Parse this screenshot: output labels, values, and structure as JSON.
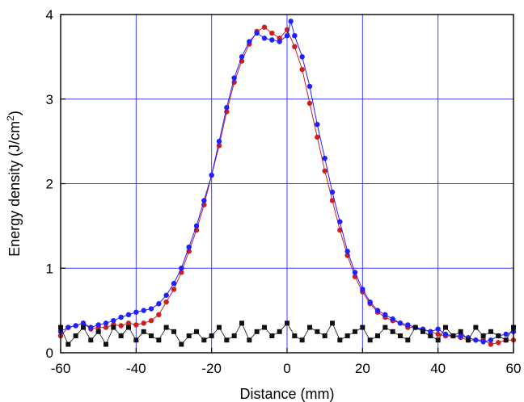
{
  "chart_data": {
    "type": "scatter",
    "xlabel": "Distance (mm)",
    "ylabel": "Energy density (J/cm²)",
    "xlim": [
      -60,
      60
    ],
    "ylim": [
      0,
      4
    ],
    "xticks": [
      "-60",
      "-40",
      "-20",
      "0",
      "20",
      "40",
      "60"
    ],
    "yticks": [
      "0",
      "1",
      "2",
      "3",
      "4"
    ],
    "grid": true,
    "colors": {
      "series_1": "#cc1f1f",
      "series_2": "#1f1fff",
      "series_3": "#111111",
      "grid": "#3b3bff"
    },
    "series": [
      {
        "marker": "circle",
        "color": "#cc1f1f",
        "x": [
          -60,
          -58,
          -56,
          -54,
          -52,
          -50,
          -48,
          -46,
          -44,
          -42,
          -40,
          -38,
          -36,
          -34,
          -32,
          -30,
          -28,
          -26,
          -24,
          -22,
          -20,
          -18,
          -16,
          -14,
          -12,
          -10,
          -8,
          -6,
          -4,
          -2,
          0,
          2,
          4,
          6,
          8,
          10,
          12,
          14,
          16,
          18,
          20,
          22,
          24,
          26,
          28,
          30,
          32,
          34,
          36,
          38,
          40,
          42,
          44,
          46,
          48,
          50,
          52,
          54,
          56,
          58,
          60
        ],
        "y": [
          0.2,
          0.3,
          0.32,
          0.35,
          0.28,
          0.3,
          0.3,
          0.33,
          0.32,
          0.35,
          0.33,
          0.35,
          0.38,
          0.45,
          0.6,
          0.75,
          0.95,
          1.2,
          1.45,
          1.75,
          2.1,
          2.45,
          2.85,
          3.2,
          3.45,
          3.65,
          3.8,
          3.85,
          3.78,
          3.72,
          3.82,
          3.62,
          3.35,
          2.95,
          2.55,
          2.15,
          1.8,
          1.45,
          1.15,
          0.9,
          0.72,
          0.58,
          0.48,
          0.42,
          0.38,
          0.35,
          0.3,
          0.3,
          0.27,
          0.25,
          0.22,
          0.2,
          0.2,
          0.18,
          0.15,
          0.15,
          0.15,
          0.1,
          0.12,
          0.15,
          0.15
        ]
      },
      {
        "marker": "circle",
        "color": "#1f1fff",
        "x": [
          -60,
          -58,
          -56,
          -54,
          -52,
          -50,
          -48,
          -46,
          -44,
          -42,
          -40,
          -38,
          -36,
          -34,
          -32,
          -30,
          -28,
          -26,
          -24,
          -22,
          -20,
          -18,
          -16,
          -14,
          -12,
          -10,
          -8,
          -6,
          -4,
          -2,
          0,
          1,
          2,
          4,
          6,
          8,
          10,
          12,
          14,
          16,
          18,
          20,
          22,
          24,
          26,
          28,
          30,
          32,
          34,
          36,
          38,
          40,
          42,
          44,
          46,
          48,
          50,
          52,
          54,
          56,
          58,
          60
        ],
        "y": [
          0.25,
          0.3,
          0.32,
          0.35,
          0.3,
          0.33,
          0.35,
          0.38,
          0.42,
          0.45,
          0.48,
          0.5,
          0.52,
          0.58,
          0.68,
          0.82,
          1.0,
          1.25,
          1.5,
          1.8,
          2.1,
          2.5,
          2.9,
          3.25,
          3.5,
          3.68,
          3.78,
          3.72,
          3.7,
          3.68,
          3.75,
          3.92,
          3.75,
          3.5,
          3.15,
          2.7,
          2.3,
          1.9,
          1.55,
          1.2,
          0.95,
          0.75,
          0.6,
          0.5,
          0.45,
          0.4,
          0.35,
          0.33,
          0.3,
          0.28,
          0.25,
          0.28,
          0.22,
          0.2,
          0.2,
          0.18,
          0.15,
          0.13,
          0.15,
          0.2,
          0.22,
          0.25
        ]
      },
      {
        "marker": "square",
        "color": "#111111",
        "x": [
          -60,
          -58,
          -56,
          -54,
          -52,
          -50,
          -48,
          -46,
          -44,
          -42,
          -40,
          -38,
          -36,
          -34,
          -32,
          -30,
          -28,
          -26,
          -24,
          -22,
          -20,
          -18,
          -16,
          -14,
          -12,
          -10,
          -8,
          -6,
          -4,
          -2,
          0,
          2,
          4,
          6,
          8,
          10,
          12,
          14,
          16,
          18,
          20,
          22,
          24,
          26,
          28,
          30,
          32,
          34,
          36,
          38,
          40,
          42,
          44,
          46,
          48,
          50,
          52,
          54,
          56,
          58,
          60
        ],
        "y": [
          0.3,
          0.1,
          0.2,
          0.3,
          0.15,
          0.25,
          0.1,
          0.3,
          0.2,
          0.3,
          0.15,
          0.25,
          0.2,
          0.15,
          0.3,
          0.25,
          0.1,
          0.2,
          0.25,
          0.15,
          0.2,
          0.3,
          0.15,
          0.2,
          0.35,
          0.15,
          0.25,
          0.3,
          0.2,
          0.25,
          0.35,
          0.2,
          0.15,
          0.3,
          0.25,
          0.2,
          0.35,
          0.15,
          0.2,
          0.25,
          0.3,
          0.15,
          0.2,
          0.3,
          0.25,
          0.2,
          0.15,
          0.3,
          0.25,
          0.2,
          0.15,
          0.3,
          0.2,
          0.25,
          0.15,
          0.3,
          0.2,
          0.25,
          0.2,
          0.15,
          0.3
        ]
      }
    ]
  }
}
